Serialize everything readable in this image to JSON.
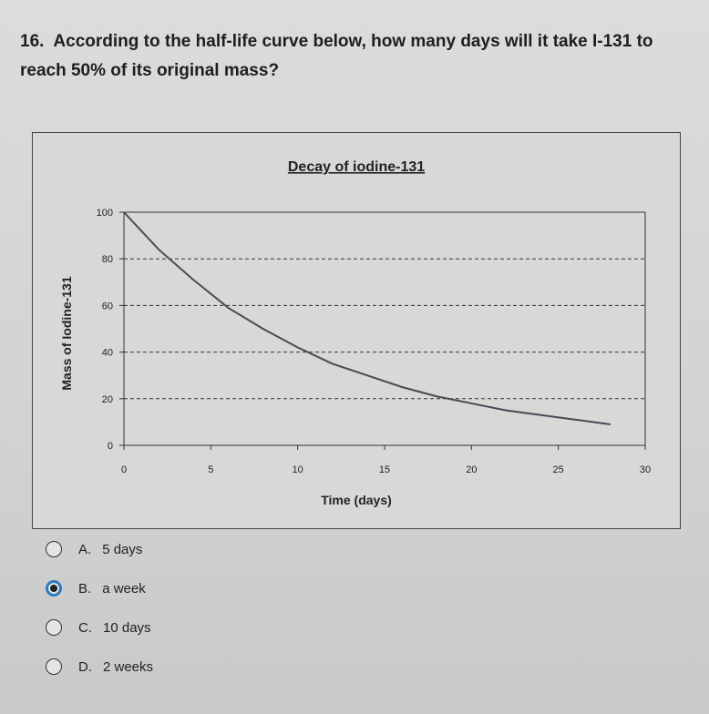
{
  "question": {
    "number": "16.",
    "text": "According to the half-life curve below, how many days will it take I-131 to reach 50% of its original mass?"
  },
  "chart_data": {
    "type": "line",
    "title": "Decay of iodine-131",
    "x_label": "Time (days)",
    "y_label": "Mass of Iodine-131",
    "x": [
      0,
      2,
      4,
      6,
      8,
      10,
      12,
      14,
      16,
      18,
      20,
      22,
      24,
      26,
      28
    ],
    "series": [
      {
        "color": "#4a4a55",
        "values": [
          100,
          84,
          71,
          59,
          50,
          42,
          35,
          30,
          25,
          21,
          18,
          15,
          13,
          11,
          9
        ]
      }
    ],
    "xlim": [
      0,
      30
    ],
    "xticks": [
      0,
      5,
      10,
      15,
      20,
      25,
      30
    ],
    "ylim": [
      0,
      100
    ],
    "yticks": [
      0,
      20,
      40,
      60,
      80,
      100
    ],
    "grid": true
  },
  "options": [
    {
      "letter": "A.",
      "text": "5 days"
    },
    {
      "letter": "B.",
      "text": "a week"
    },
    {
      "letter": "C.",
      "text": "10 days"
    },
    {
      "letter": "D.",
      "text": "2 weeks"
    }
  ],
  "selected": 1
}
